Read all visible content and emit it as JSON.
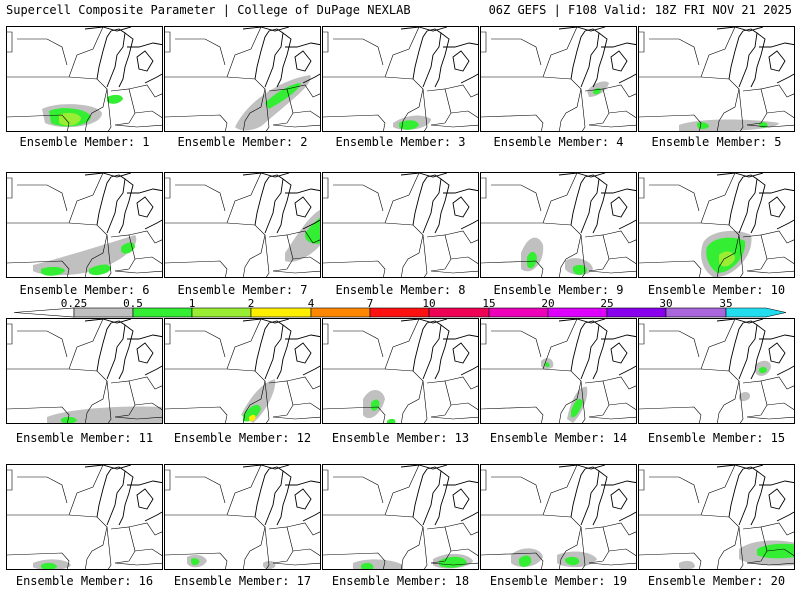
{
  "header": {
    "left": "Supercell Composite Parameter | College of DuPage NEXLAB",
    "right": "06Z GEFS | F108 Valid: 18Z FRI NOV 21 2025"
  },
  "panels": [
    {
      "label": "Ensemble Member: 1"
    },
    {
      "label": "Ensemble Member: 2"
    },
    {
      "label": "Ensemble Member: 3"
    },
    {
      "label": "Ensemble Member: 4"
    },
    {
      "label": "Ensemble Member: 5"
    },
    {
      "label": "Ensemble Member: 6"
    },
    {
      "label": "Ensemble Member: 7"
    },
    {
      "label": "Ensemble Member: 8"
    },
    {
      "label": "Ensemble Member: 9"
    },
    {
      "label": "Ensemble Member: 10"
    },
    {
      "label": "Ensemble Member: 11"
    },
    {
      "label": "Ensemble Member: 12"
    },
    {
      "label": "Ensemble Member: 13"
    },
    {
      "label": "Ensemble Member: 14"
    },
    {
      "label": "Ensemble Member: 15"
    },
    {
      "label": "Ensemble Member: 16"
    },
    {
      "label": "Ensemble Member: 17"
    },
    {
      "label": "Ensemble Member: 18"
    },
    {
      "label": "Ensemble Member: 19"
    },
    {
      "label": "Ensemble Member: 20"
    }
  ],
  "colorbar": {
    "ticks": [
      "0.25",
      "0.5",
      "1",
      "2",
      "4",
      "7",
      "10",
      "15",
      "20",
      "25",
      "30",
      "35"
    ],
    "colors": [
      "#c0c0c0",
      "#33ee33",
      "#99ee33",
      "#ffee00",
      "#ff8800",
      "#ff1111",
      "#ee0055",
      "#ee00bb",
      "#dd00ff",
      "#8800ee",
      "#aa66dd",
      "#22ddee"
    ]
  }
}
